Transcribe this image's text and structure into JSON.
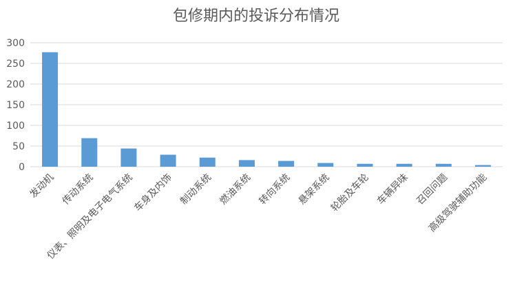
{
  "chart_data": {
    "type": "bar",
    "title": "包修期内的投诉分布情况",
    "xlabel": "",
    "ylabel": "",
    "ylim": [
      0,
      300
    ],
    "yticks": [
      0,
      50,
      100,
      150,
      200,
      250,
      300
    ],
    "grid": true,
    "legend": "none",
    "bar_color": "#5b9bd5",
    "grid_color": "#d9d9d9",
    "categories": [
      "发动机",
      "传动系统",
      "仪表、照明及电子电气系统",
      "车身及内饰",
      "制动系统",
      "燃油系统",
      "转向系统",
      "悬架系统",
      "轮胎及车轮",
      "车辆异味",
      "召回问题",
      "高级驾驶辅助功能"
    ],
    "values": [
      277,
      69,
      44,
      29,
      22,
      16,
      14,
      9,
      7,
      7,
      7,
      4
    ]
  }
}
